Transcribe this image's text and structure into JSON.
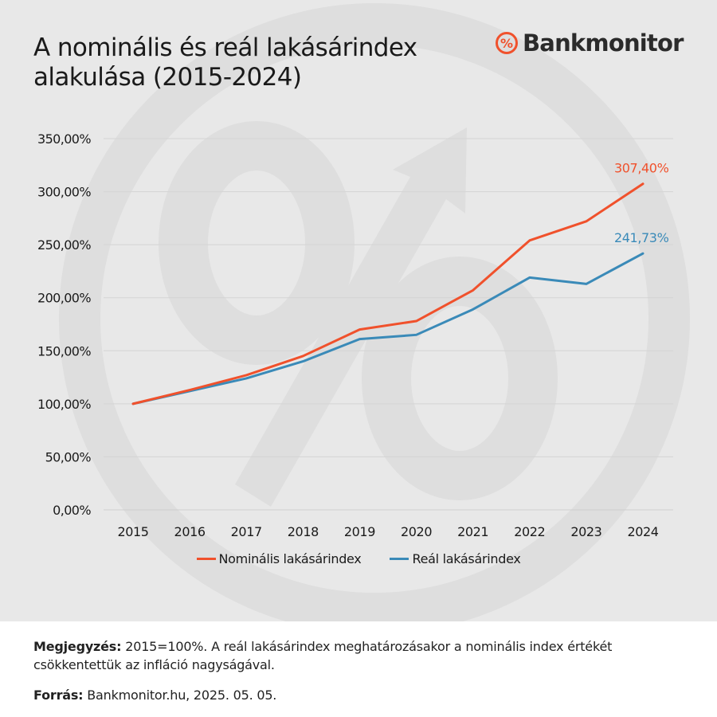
{
  "title_lines": [
    "A nominális és reál lakásárindex",
    "alakulása (2015-2024)"
  ],
  "brand": {
    "name": "Bankmonitor",
    "icon": "percent-circle-icon",
    "color": "#f0512c"
  },
  "chart_data": {
    "type": "line",
    "title": "A nominális és reál lakásárindex alakulása (2015-2024)",
    "categories": [
      "2015",
      "2016",
      "2017",
      "2018",
      "2019",
      "2020",
      "2021",
      "2022",
      "2023",
      "2024"
    ],
    "series": [
      {
        "name": "Nominális lakásárindex",
        "color": "#f0512c",
        "values": [
          100,
          113,
          127,
          145,
          170,
          178,
          207,
          254,
          272,
          307.4
        ]
      },
      {
        "name": "Reál lakásárindex",
        "color": "#3a8ab8",
        "values": [
          100,
          112,
          124,
          140,
          161,
          165,
          189,
          219,
          213,
          241.73
        ]
      }
    ],
    "end_labels": [
      "307,40%",
      "241,73%"
    ],
    "y_ticks": [
      "0,00%",
      "50,00%",
      "100,00%",
      "150,00%",
      "200,00%",
      "250,00%",
      "300,00%",
      "350,00%"
    ],
    "ylim": [
      0,
      350
    ],
    "grid": true,
    "legend_position": "bottom"
  },
  "footer": {
    "note_label": "Megjegyzés:",
    "note_text": "2015=100%. A reál lakásárindex meghatározásakor a nominális index értékét csökkentettük az infláció nagyságával.",
    "source_label": "Forrás:",
    "source_text": "Bankmonitor.hu, 2025. 05. 05."
  }
}
